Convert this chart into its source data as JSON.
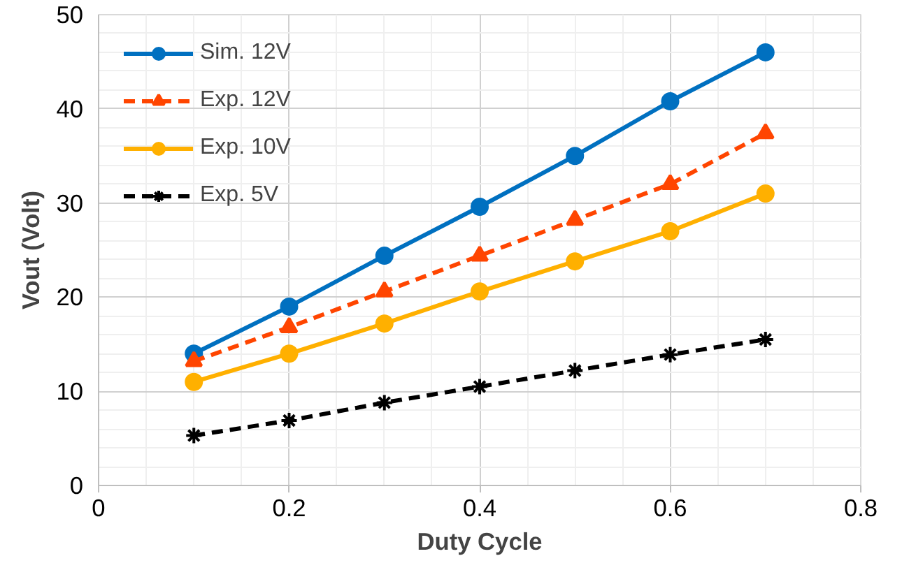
{
  "chart_data": {
    "type": "line",
    "xlabel": "Duty Cycle",
    "ylabel": "Vout (Volt)",
    "x": [
      0.1,
      0.2,
      0.3,
      0.4,
      0.5,
      0.6,
      0.7
    ],
    "series": [
      {
        "name": "Sim. 12V",
        "color": "#0070c0",
        "values": [
          14,
          19,
          24.4,
          29.6,
          35,
          40.8,
          46
        ],
        "marker": "circle",
        "line_style": "solid"
      },
      {
        "name": "Exp. 12V",
        "color": "#ff4500",
        "values": [
          13.2,
          16.8,
          20.6,
          24.4,
          28.2,
          32,
          37.4
        ],
        "marker": "triangle",
        "line_style": "dashed"
      },
      {
        "name": "Exp. 10V",
        "color": "#ffb000",
        "values": [
          11,
          14,
          17.2,
          20.6,
          23.8,
          27,
          31
        ],
        "marker": "circle",
        "line_style": "solid"
      },
      {
        "name": "Exp. 5V",
        "color": "#000000",
        "values": [
          5.3,
          6.9,
          8.8,
          10.5,
          12.2,
          13.9,
          15.5
        ],
        "marker": "cross",
        "line_style": "dashed"
      }
    ],
    "xlim": [
      0,
      0.8
    ],
    "xticks": [
      0,
      0.2,
      0.4,
      0.6,
      0.8
    ],
    "ylim": [
      0,
      50
    ],
    "yticks": [
      0,
      10,
      20,
      30,
      40,
      50
    ],
    "grid": true,
    "legend": "top left"
  }
}
